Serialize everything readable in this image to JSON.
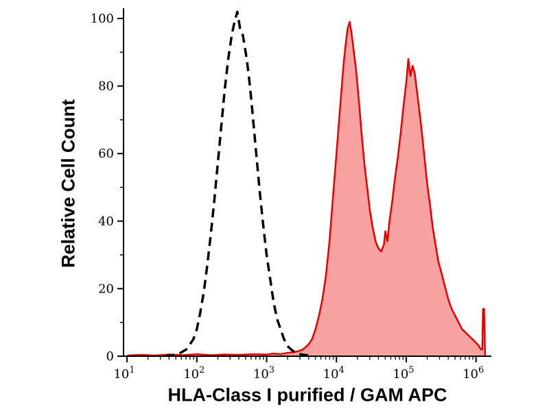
{
  "page": {
    "background": "#ffffff"
  },
  "chart_data": {
    "type": "area",
    "subtype": "flow-cytometry-histogram-overlay",
    "title": "",
    "xlabel": "HLA-Class I purified / GAM APC",
    "ylabel": "Relative Cell Count",
    "x_scale": "log10",
    "x_range_log": [
      0.95,
      6.18
    ],
    "ylim": [
      0,
      100
    ],
    "y_major_ticks": [
      0,
      20,
      40,
      60,
      80,
      100
    ],
    "y_minor_step": 10,
    "x_tick_base": "10",
    "x_major_tick_exponents": [
      1,
      2,
      3,
      4,
      5,
      6
    ],
    "grid": false,
    "legend": "none",
    "axis_color": "#000000",
    "series": [
      {
        "name": "negative-control",
        "type": "line",
        "line_style": "dashed",
        "color": "#000000",
        "line_width": 3.5,
        "dash": [
          13,
          8
        ],
        "points_log_x_y": [
          [
            1.55,
            0.1
          ],
          [
            1.65,
            0.3
          ],
          [
            1.75,
            0.8
          ],
          [
            1.85,
            2
          ],
          [
            1.95,
            5
          ],
          [
            2.0,
            8
          ],
          [
            2.05,
            13
          ],
          [
            2.1,
            19
          ],
          [
            2.15,
            27
          ],
          [
            2.2,
            36
          ],
          [
            2.25,
            46
          ],
          [
            2.3,
            57
          ],
          [
            2.35,
            68
          ],
          [
            2.4,
            79
          ],
          [
            2.45,
            88
          ],
          [
            2.5,
            95
          ],
          [
            2.54,
            99
          ],
          [
            2.58,
            102
          ],
          [
            2.62,
            97
          ],
          [
            2.66,
            95
          ],
          [
            2.7,
            90
          ],
          [
            2.74,
            84
          ],
          [
            2.78,
            76
          ],
          [
            2.82,
            67
          ],
          [
            2.86,
            58
          ],
          [
            2.9,
            49
          ],
          [
            2.95,
            39
          ],
          [
            3.0,
            30
          ],
          [
            3.05,
            23
          ],
          [
            3.1,
            16
          ],
          [
            3.15,
            11
          ],
          [
            3.2,
            8
          ],
          [
            3.25,
            5
          ],
          [
            3.3,
            3
          ],
          [
            3.35,
            2
          ],
          [
            3.4,
            1.2
          ],
          [
            3.5,
            0.5
          ],
          [
            3.6,
            0.2
          ]
        ]
      },
      {
        "name": "hla-class-i-stained",
        "type": "area",
        "line_style": "solid",
        "color": "#e60000",
        "fill_color": "#f7a1a1",
        "line_width": 2.5,
        "points_log_x_y": [
          [
            1.0,
            0.2
          ],
          [
            1.2,
            0.4
          ],
          [
            1.4,
            0.2
          ],
          [
            1.6,
            0.5
          ],
          [
            1.8,
            0.3
          ],
          [
            2.0,
            0.6
          ],
          [
            2.2,
            0.3
          ],
          [
            2.4,
            0.5
          ],
          [
            2.6,
            0.4
          ],
          [
            2.8,
            0.6
          ],
          [
            3.0,
            0.5
          ],
          [
            3.1,
            0.8
          ],
          [
            3.2,
            0.6
          ],
          [
            3.3,
            1.0
          ],
          [
            3.4,
            1.2
          ],
          [
            3.5,
            1.8
          ],
          [
            3.55,
            2.5
          ],
          [
            3.6,
            3.5
          ],
          [
            3.65,
            5
          ],
          [
            3.7,
            8
          ],
          [
            3.75,
            12
          ],
          [
            3.8,
            17
          ],
          [
            3.85,
            24
          ],
          [
            3.9,
            34
          ],
          [
            3.95,
            47
          ],
          [
            4.0,
            60
          ],
          [
            4.05,
            73
          ],
          [
            4.1,
            86
          ],
          [
            4.13,
            92
          ],
          [
            4.16,
            97
          ],
          [
            4.19,
            99
          ],
          [
            4.22,
            95
          ],
          [
            4.25,
            90
          ],
          [
            4.28,
            85
          ],
          [
            4.32,
            76
          ],
          [
            4.36,
            66
          ],
          [
            4.4,
            57
          ],
          [
            4.44,
            50
          ],
          [
            4.48,
            43
          ],
          [
            4.52,
            38
          ],
          [
            4.56,
            34
          ],
          [
            4.6,
            32
          ],
          [
            4.64,
            31
          ],
          [
            4.68,
            33
          ],
          [
            4.7,
            37
          ],
          [
            4.73,
            34
          ],
          [
            4.76,
            40
          ],
          [
            4.8,
            46
          ],
          [
            4.84,
            53
          ],
          [
            4.88,
            59
          ],
          [
            4.92,
            66
          ],
          [
            4.96,
            74
          ],
          [
            5.0,
            81
          ],
          [
            5.03,
            88
          ],
          [
            5.06,
            83
          ],
          [
            5.09,
            86
          ],
          [
            5.12,
            84
          ],
          [
            5.15,
            79
          ],
          [
            5.18,
            74
          ],
          [
            5.22,
            67
          ],
          [
            5.26,
            59
          ],
          [
            5.3,
            51
          ],
          [
            5.34,
            45
          ],
          [
            5.38,
            38
          ],
          [
            5.42,
            33
          ],
          [
            5.46,
            28
          ],
          [
            5.5,
            25
          ],
          [
            5.55,
            21
          ],
          [
            5.6,
            17
          ],
          [
            5.65,
            14
          ],
          [
            5.7,
            12
          ],
          [
            5.75,
            10
          ],
          [
            5.8,
            8
          ],
          [
            5.85,
            7
          ],
          [
            5.9,
            6
          ],
          [
            5.95,
            5
          ],
          [
            6.0,
            4
          ],
          [
            6.04,
            3
          ],
          [
            6.07,
            2
          ],
          [
            6.09,
            2
          ],
          [
            6.1,
            14
          ],
          [
            6.115,
            14
          ],
          [
            6.13,
            0
          ]
        ]
      }
    ]
  }
}
